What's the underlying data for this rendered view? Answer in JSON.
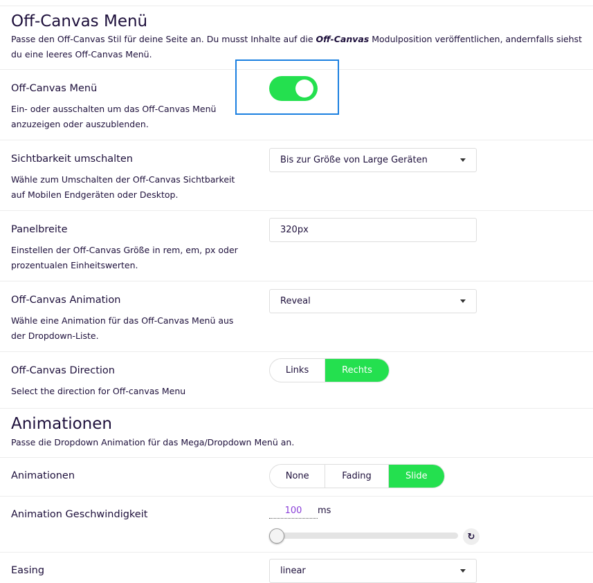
{
  "offcanvas": {
    "title": "Off-Canvas Menü",
    "desc_pre": "Passe den Off-Canvas Stil für deine Seite an. Du musst Inhalte auf die ",
    "desc_em": "Off-Canvas",
    "desc_post": " Modulposition veröffentlichen, andernfalls siehst du eine leeres Off-Canvas Menü."
  },
  "rows": {
    "enable": {
      "label": "Off-Canvas Menü",
      "help": "Ein- oder ausschalten um das Off-Canvas Menü anzuzeigen oder auszublenden.",
      "value": true
    },
    "visibility": {
      "label": "Sichtbarkeit umschalten",
      "help": "Wähle zum Umschalten der Off-Canvas Sichtbarkeit auf Mobilen Endgeräten oder Desktop.",
      "value": "Bis zur Größe von Large Geräten"
    },
    "width": {
      "label": "Panelbreite",
      "help": "Einstellen der Off-Canvas Größe in rem, em, px oder prozentualen Einheitswerten.",
      "value": "320px"
    },
    "animation": {
      "label": "Off-Canvas Animation",
      "help": "Wähle eine Animation für das Off-Canvas Menü aus der Dropdown-Liste.",
      "value": "Reveal"
    },
    "direction": {
      "label": "Off-Canvas Direction",
      "help": "Select the direction for Off-canvas Menu",
      "options": [
        "Links",
        "Rechts"
      ],
      "selected": "Rechts"
    }
  },
  "animations": {
    "title": "Animationen",
    "desc": "Passe die Dropdown Animation für das Mega/Dropdown Menü an.",
    "type": {
      "label": "Animationen",
      "options": [
        "None",
        "Fading",
        "Slide"
      ],
      "selected": "Slide"
    },
    "speed": {
      "label": "Animation Geschwindigkeit",
      "value": "100",
      "unit": "ms"
    },
    "easing": {
      "label": "Easing",
      "value": "linear"
    }
  },
  "colors": {
    "accent": "#24e04f",
    "focus": "#1a7fe0",
    "value": "#8a3fd8"
  }
}
